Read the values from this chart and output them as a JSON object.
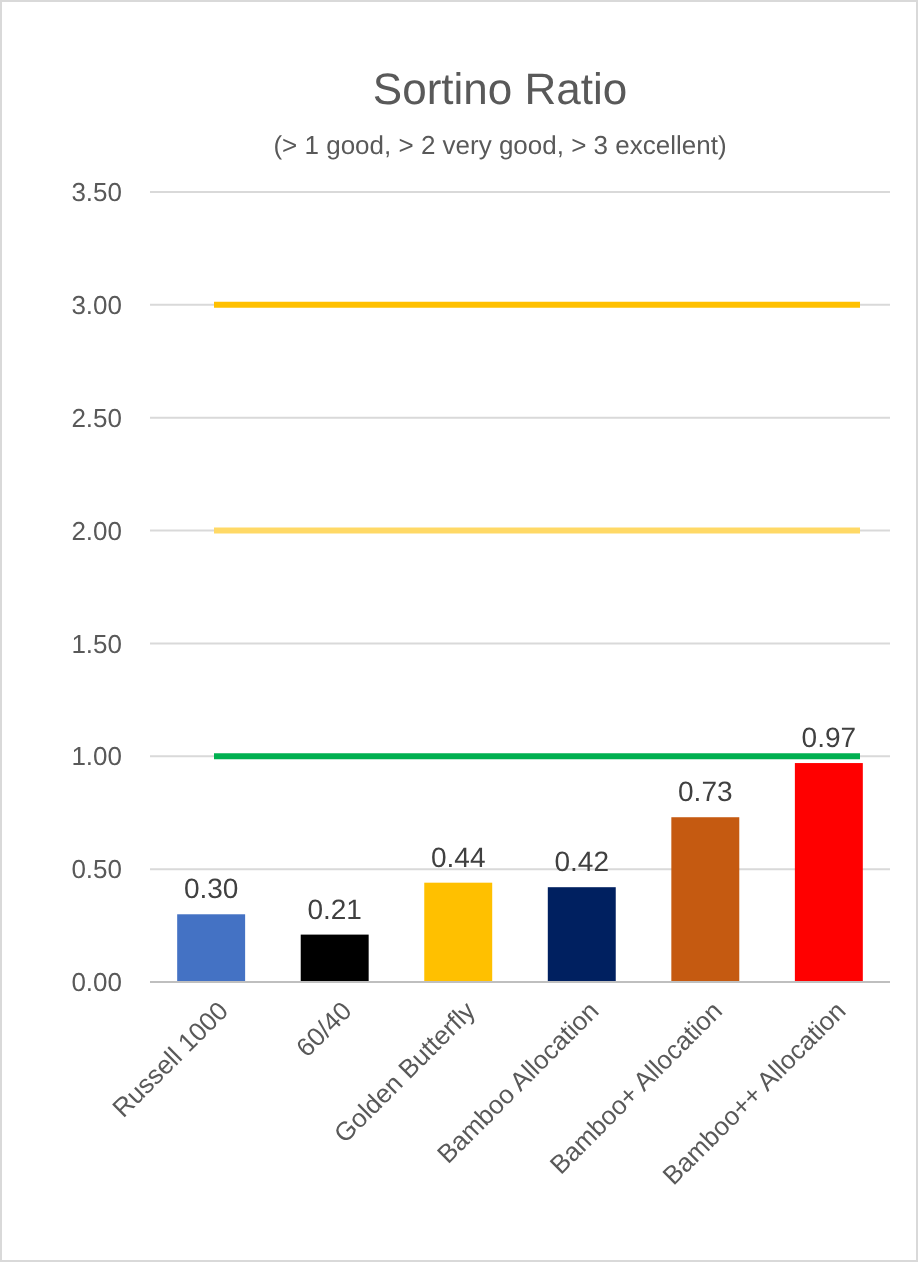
{
  "chart_data": {
    "type": "bar",
    "title": "Sortino Ratio",
    "subtitle": "(> 1 good, > 2 very good, > 3 excellent)",
    "categories": [
      "Russell 1000",
      "60/40",
      "Golden Butterfly",
      "Bamboo Allocation",
      "Bamboo+ Allocation",
      "Bamboo++ Allocation"
    ],
    "values": [
      0.3,
      0.21,
      0.44,
      0.42,
      0.73,
      0.97
    ],
    "colors": [
      "#4472c4",
      "#000000",
      "#ffc000",
      "#002060",
      "#c55a11",
      "#ff0000"
    ],
    "value_labels": [
      "0.30",
      "0.21",
      "0.44",
      "0.42",
      "0.73",
      "0.97"
    ],
    "ylim": [
      0,
      3.5
    ],
    "yticks": [
      {
        "value": 0,
        "label": "0.00"
      },
      {
        "value": 0.5,
        "label": "0.50"
      },
      {
        "value": 1,
        "label": "1.00"
      },
      {
        "value": 1.5,
        "label": "1.50"
      },
      {
        "value": 2,
        "label": "2.00"
      },
      {
        "value": 2.5,
        "label": "2.50"
      },
      {
        "value": 3,
        "label": "3.00"
      },
      {
        "value": 3.5,
        "label": "3.50"
      }
    ],
    "grid": "y",
    "ref_lines": [
      {
        "axis": "y",
        "value": 1,
        "color": "#00b050"
      },
      {
        "axis": "y",
        "value": 2,
        "color": "#ffd966"
      },
      {
        "axis": "y",
        "value": 3,
        "color": "#ffc000"
      }
    ]
  }
}
